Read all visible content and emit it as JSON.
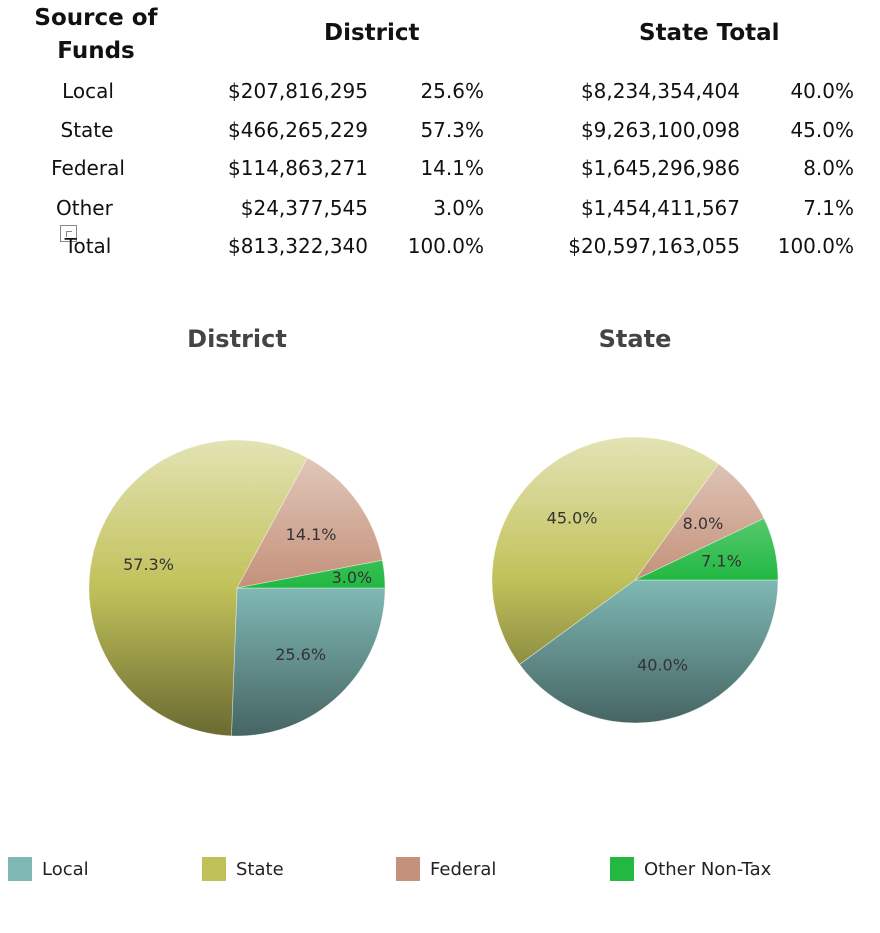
{
  "table": {
    "headers": {
      "source": "Source of Funds",
      "district": "District",
      "state": "State Total"
    },
    "rows": [
      {
        "label": "Local",
        "district_amount": "$207,816,295",
        "district_pct": "25.6%",
        "state_amount": "$8,234,354,404",
        "state_pct": "40.0%"
      },
      {
        "label": "State",
        "district_amount": "$466,265,229",
        "district_pct": "57.3%",
        "state_amount": "$9,263,100,098",
        "state_pct": "45.0%"
      },
      {
        "label": "Federal",
        "district_amount": "$114,863,271",
        "district_pct": "14.1%",
        "state_amount": "$1,645,296,986",
        "state_pct": "8.0%"
      },
      {
        "label": "Other",
        "district_amount": "$24,377,545",
        "district_pct": "3.0%",
        "state_amount": "$1,454,411,567",
        "state_pct": "7.1%",
        "icon": "note-icon"
      },
      {
        "label": "Total",
        "district_amount": "$813,322,340",
        "district_pct": "100.0%",
        "state_amount": "$20,597,163,055",
        "state_pct": "100.0%"
      }
    ]
  },
  "chart_data": [
    {
      "type": "pie",
      "title": "District",
      "categories": [
        "Local",
        "State",
        "Federal",
        "Other Non-Tax"
      ],
      "values": [
        25.6,
        57.3,
        14.1,
        3.0
      ],
      "labels": [
        "25.6%",
        "57.3%",
        "14.1%",
        "3.0%"
      ]
    },
    {
      "type": "pie",
      "title": "State",
      "categories": [
        "Local",
        "State",
        "Federal",
        "Other Non-Tax"
      ],
      "values": [
        40.0,
        45.0,
        8.0,
        7.1
      ],
      "labels": [
        "40.0%",
        "45.0%",
        "8.0%",
        "7.1%"
      ]
    }
  ],
  "legend": {
    "placement": "bottom",
    "items": [
      {
        "label": "Local",
        "color": "#7fb8b4"
      },
      {
        "label": "State",
        "color": "#c1c15a"
      },
      {
        "label": "Federal",
        "color": "#c4917a"
      },
      {
        "label": "Other Non-Tax",
        "color": "#22b842"
      }
    ]
  }
}
